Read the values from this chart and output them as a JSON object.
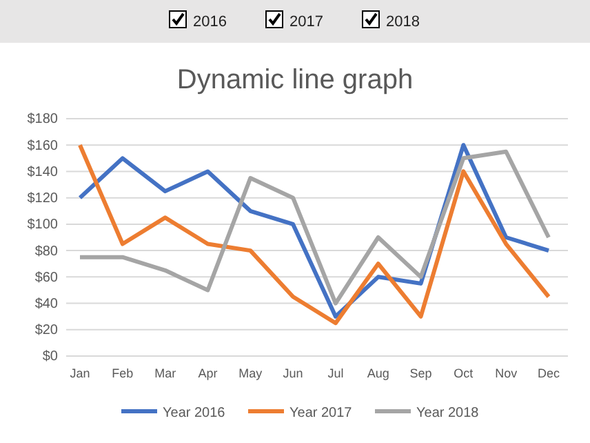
{
  "chart_data": {
    "type": "line",
    "title": "Dynamic line graph",
    "annotations": [
      "2016",
      "2017",
      "2018"
    ],
    "categories": [
      "Jan",
      "Feb",
      "Mar",
      "Apr",
      "May",
      "Jun",
      "Jul",
      "Aug",
      "Sep",
      "Oct",
      "Nov",
      "Dec"
    ],
    "series": [
      {
        "name": "Year 2016",
        "color": "#4472c4",
        "values": [
          120,
          150,
          125,
          140,
          110,
          100,
          30,
          60,
          55,
          160,
          90,
          80
        ]
      },
      {
        "name": "Year 2017",
        "color": "#ed7d31",
        "values": [
          160,
          85,
          105,
          85,
          80,
          45,
          25,
          70,
          30,
          140,
          85,
          45
        ]
      },
      {
        "name": "Year 2018",
        "color": "#a5a5a5",
        "values": [
          75,
          75,
          65,
          50,
          135,
          120,
          40,
          90,
          60,
          150,
          155,
          90
        ]
      }
    ],
    "ylim": [
      0,
      180
    ],
    "yticks": [
      {
        "value": 0,
        "label": "$0"
      },
      {
        "value": 20,
        "label": "$20"
      },
      {
        "value": 40,
        "label": "$40"
      },
      {
        "value": 60,
        "label": "$60"
      },
      {
        "value": 80,
        "label": "$80"
      },
      {
        "value": 100,
        "label": "$100"
      },
      {
        "value": 120,
        "label": "$120"
      },
      {
        "value": 140,
        "label": "$140"
      },
      {
        "value": 160,
        "label": "$160"
      },
      {
        "value": 180,
        "label": "$180"
      }
    ],
    "grid": "y",
    "legend": "bottom",
    "marker": "none",
    "line_style": "solid"
  }
}
